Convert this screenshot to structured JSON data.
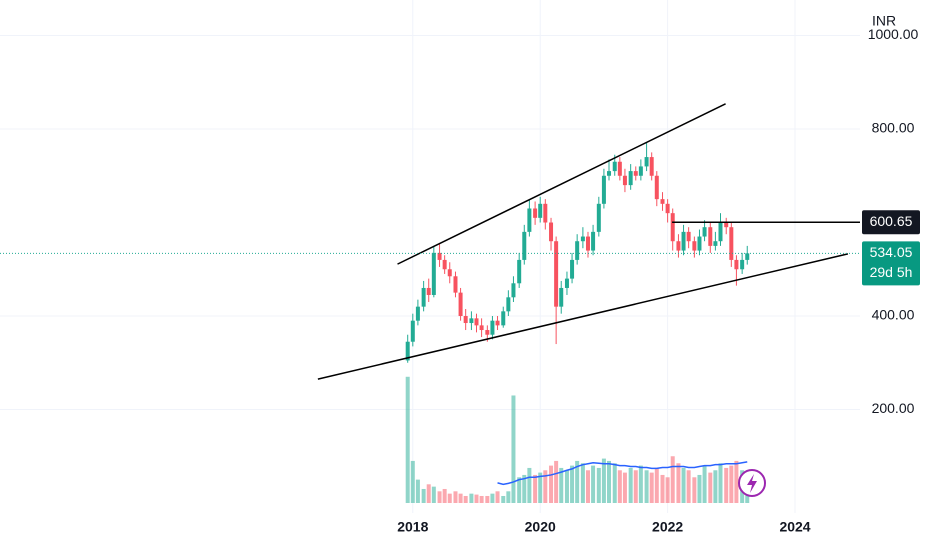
{
  "chart_data": {
    "type": "candlestick",
    "currency": "INR",
    "x": [
      2017.92,
      2018,
      2018.08,
      2018.17,
      2018.25,
      2018.33,
      2018.42,
      2018.5,
      2018.58,
      2018.67,
      2018.75,
      2018.83,
      2018.92,
      2019,
      2019.08,
      2019.17,
      2019.25,
      2019.33,
      2019.42,
      2019.5,
      2019.58,
      2019.67,
      2019.75,
      2019.83,
      2019.92,
      2020,
      2020.08,
      2020.17,
      2020.25,
      2020.33,
      2020.42,
      2020.5,
      2020.58,
      2020.67,
      2020.75,
      2020.83,
      2020.92,
      2021,
      2021.08,
      2021.17,
      2021.25,
      2021.33,
      2021.42,
      2021.5,
      2021.58,
      2021.67,
      2021.75,
      2021.83,
      2021.92,
      2022,
      2022.08,
      2022.17,
      2022.25,
      2022.33,
      2022.42,
      2022.5,
      2022.58,
      2022.67,
      2022.75,
      2022.83,
      2022.92,
      2023,
      2023.08,
      2023.17,
      2023.25
    ],
    "open": [
      305,
      345,
      390,
      420,
      460,
      445,
      535,
      520,
      500,
      485,
      450,
      400,
      385,
      395,
      380,
      370,
      360,
      390,
      380,
      410,
      440,
      470,
      520,
      580,
      630,
      610,
      640,
      600,
      560,
      420,
      460,
      480,
      520,
      560,
      570,
      540,
      580,
      640,
      700,
      710,
      730,
      700,
      680,
      710,
      700,
      720,
      740,
      700,
      650,
      640,
      620,
      560,
      540,
      580,
      560,
      540,
      570,
      590,
      550,
      560,
      600,
      590,
      520,
      500,
      520
    ],
    "high": [
      360,
      405,
      435,
      475,
      480,
      550,
      555,
      530,
      515,
      495,
      460,
      415,
      410,
      405,
      395,
      380,
      400,
      400,
      420,
      455,
      485,
      535,
      595,
      650,
      645,
      655,
      650,
      610,
      570,
      475,
      495,
      535,
      575,
      590,
      580,
      595,
      655,
      715,
      735,
      745,
      740,
      715,
      725,
      720,
      735,
      770,
      750,
      710,
      665,
      650,
      630,
      575,
      595,
      590,
      570,
      585,
      605,
      600,
      580,
      620,
      610,
      600,
      530,
      535,
      550
    ],
    "low": [
      300,
      335,
      380,
      410,
      430,
      440,
      505,
      490,
      470,
      440,
      390,
      370,
      370,
      365,
      355,
      345,
      350,
      370,
      375,
      400,
      430,
      460,
      510,
      570,
      595,
      600,
      585,
      540,
      340,
      405,
      445,
      470,
      510,
      545,
      525,
      530,
      570,
      630,
      690,
      700,
      690,
      665,
      670,
      690,
      690,
      710,
      690,
      635,
      625,
      600,
      540,
      525,
      530,
      545,
      525,
      530,
      560,
      535,
      540,
      550,
      575,
      505,
      465,
      490,
      510
    ],
    "close": [
      345,
      390,
      420,
      460,
      445,
      535,
      520,
      500,
      485,
      450,
      400,
      385,
      395,
      380,
      370,
      360,
      390,
      380,
      410,
      440,
      470,
      520,
      580,
      630,
      610,
      640,
      600,
      560,
      420,
      460,
      480,
      520,
      560,
      570,
      540,
      580,
      640,
      700,
      710,
      730,
      700,
      680,
      710,
      700,
      720,
      740,
      700,
      650,
      640,
      620,
      560,
      540,
      580,
      560,
      540,
      570,
      590,
      550,
      560,
      600,
      590,
      520,
      500,
      520,
      534.05
    ],
    "volume": [
      270,
      90,
      50,
      30,
      40,
      35,
      25,
      30,
      20,
      25,
      20,
      15,
      20,
      18,
      15,
      15,
      20,
      25,
      15,
      25,
      230,
      55,
      60,
      75,
      60,
      65,
      70,
      80,
      90,
      75,
      70,
      80,
      90,
      85,
      70,
      80,
      75,
      95,
      90,
      85,
      70,
      65,
      75,
      70,
      80,
      70,
      65,
      75,
      60,
      55,
      100,
      85,
      75,
      70,
      55,
      60,
      80,
      65,
      70,
      85,
      75,
      80,
      90,
      70,
      40
    ],
    "volume_ma": [
      null,
      null,
      null,
      null,
      null,
      null,
      null,
      null,
      null,
      null,
      null,
      null,
      null,
      null,
      null,
      null,
      null,
      43,
      40,
      42,
      45,
      50,
      52,
      55,
      55,
      57,
      58,
      60,
      63,
      66,
      70,
      73,
      78,
      82,
      84,
      86,
      85,
      84,
      84,
      82,
      80,
      80,
      78,
      78,
      76,
      76,
      74,
      74,
      76,
      76,
      78,
      78,
      78,
      76,
      76,
      78,
      80,
      80,
      82,
      82,
      84,
      84,
      84,
      86,
      88
    ],
    "up_color": "#22ab94",
    "down_color": "#f7525f",
    "volume_ma_color": "#2962ff",
    "xlim": [
      2011.52,
      2025.02
    ],
    "xticks": [
      2018,
      2020,
      2022,
      2024
    ],
    "ylim": [
      0,
      1076
    ],
    "yticks": [
      {
        "value": 200,
        "label": "200.00"
      },
      {
        "value": 400,
        "label": "400.00"
      },
      {
        "value": 800,
        "label": "800.00"
      },
      {
        "value": 1000,
        "label": "1000.00"
      }
    ],
    "grid": true,
    "trendlines": [
      {
        "x": [
          2017.76,
          2022.91
        ],
        "y": [
          511,
          854
        ]
      },
      {
        "x": [
          2016.51,
          2024.83
        ],
        "y": [
          265,
          533
        ]
      }
    ],
    "level": {
      "x_start": 2022.07,
      "value": 600.65
    },
    "last_price": 534.05,
    "countdown": "29d 5h"
  }
}
